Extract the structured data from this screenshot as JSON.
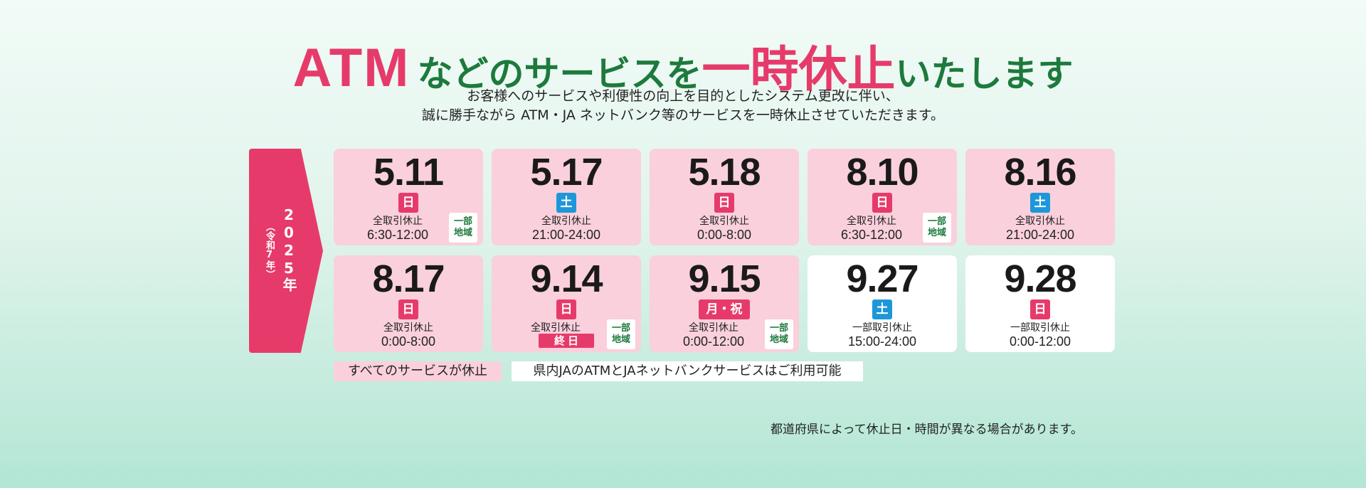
{
  "headline": {
    "atm": "ATM",
    "part1": "などのサービスを",
    "emphasis": "一時休止",
    "part2": "いたします"
  },
  "subtext": {
    "line1": "お客様へのサービスや利便性の向上を目的としたシステム更改に伴い、",
    "line2": "誠に勝手ながら ATM・JA ネットバンク等のサービスを一時休止させていただきます。"
  },
  "year": {
    "main": "2025年",
    "sub": "（令和7年）"
  },
  "schedule": [
    {
      "date": "5.11",
      "day": "日",
      "day_type": "sun",
      "label": "全取引休止",
      "time": "6:30-12:00",
      "region": [
        "一部",
        "地域"
      ],
      "partial": false
    },
    {
      "date": "5.17",
      "day": "土",
      "day_type": "sat",
      "label": "全取引休止",
      "time": "21:00-24:00",
      "region": [],
      "partial": false
    },
    {
      "date": "5.18",
      "day": "日",
      "day_type": "sun",
      "label": "全取引休止",
      "time": "0:00-8:00",
      "region": [],
      "partial": false
    },
    {
      "date": "8.10",
      "day": "日",
      "day_type": "sun",
      "label": "全取引休止",
      "time": "6:30-12:00",
      "region": [
        "一部",
        "地域"
      ],
      "partial": false
    },
    {
      "date": "8.16",
      "day": "土",
      "day_type": "sat",
      "label": "全取引休止",
      "time": "21:00-24:00",
      "region": [],
      "partial": false
    },
    {
      "date": "8.17",
      "day": "日",
      "day_type": "sun",
      "label": "全取引休止",
      "time": "0:00-8:00",
      "region": [],
      "partial": false
    },
    {
      "date": "9.14",
      "day": "日",
      "day_type": "sun",
      "label": "全取引休止",
      "allday": "終日",
      "region": [
        "一部",
        "地域"
      ],
      "partial": false
    },
    {
      "date": "9.15",
      "day": "月・祝",
      "day_type": "sun",
      "label": "全取引休止",
      "time": "0:00-12:00",
      "region": [
        "一部",
        "地域"
      ],
      "partial": false
    },
    {
      "date": "9.27",
      "day": "土",
      "day_type": "sat",
      "label": "一部取引休止",
      "time": "15:00-24:00",
      "region": [],
      "partial": true
    },
    {
      "date": "9.28",
      "day": "日",
      "day_type": "sun",
      "label": "一部取引休止",
      "time": "0:00-12:00",
      "region": [],
      "partial": true
    }
  ],
  "legend": {
    "all": "すべてのサービスが休止",
    "partial": "県内JAのATMとJAネットバンクサービスはご利用可能"
  },
  "note": "都道府県によって休止日・時間が異なる場合があります。",
  "colors": {
    "accent_pink": "#e63b6a",
    "accent_green": "#1d7a3c",
    "saturday_blue": "#1e97d9",
    "cell_pink": "#f9d0dc"
  }
}
